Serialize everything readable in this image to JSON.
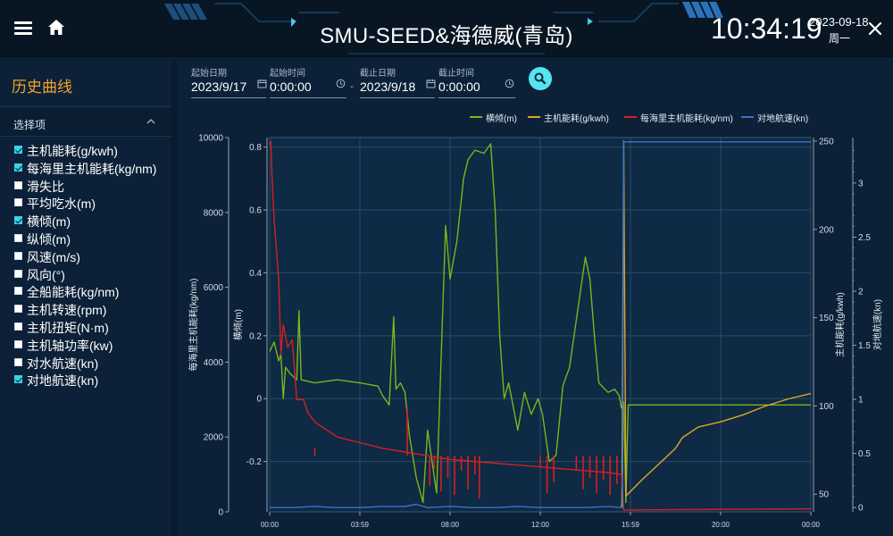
{
  "header": {
    "title": "SMU-SEED&海德威(青岛)",
    "time": "10:34:19",
    "date": "2023-09-18",
    "weekday": "周一",
    "icons": [
      "menu-icon",
      "home-icon",
      "close-icon"
    ]
  },
  "sidebar": {
    "title": "历史曲线",
    "section_label": "选择项",
    "options": [
      {
        "label": "主机能耗(g/kwh)",
        "checked": true
      },
      {
        "label": "每海里主机能耗(kg/nm)",
        "checked": true
      },
      {
        "label": "滑失比",
        "checked": false
      },
      {
        "label": "平均吃水(m)",
        "checked": false
      },
      {
        "label": "横倾(m)",
        "checked": true
      },
      {
        "label": "纵倾(m)",
        "checked": false
      },
      {
        "label": "风速(m/s)",
        "checked": false
      },
      {
        "label": "风向(°)",
        "checked": false
      },
      {
        "label": "全船能耗(kg/nm)",
        "checked": false
      },
      {
        "label": "主机转速(rpm)",
        "checked": false
      },
      {
        "label": "主机扭矩(N·m)",
        "checked": false
      },
      {
        "label": "主机轴功率(kw)",
        "checked": false
      },
      {
        "label": "对水航速(kn)",
        "checked": false
      },
      {
        "label": "对地航速(kn)",
        "checked": true
      }
    ]
  },
  "filters": {
    "start_date_label": "起始日期",
    "start_date": "2023/9/17",
    "start_time_label": "起始时间",
    "start_time": "0:00:00",
    "separator": "-",
    "end_date_label": "截止日期",
    "end_date": "2023/9/18",
    "end_time_label": "截止时间",
    "end_time": "0:00:00"
  },
  "colors": {
    "heel": "#7ab51d",
    "me_energy": "#e0a52a",
    "nm_energy": "#d42020",
    "sog": "#3c74c4",
    "accent": "#55e4f2",
    "sidebar_title": "#f4a12a"
  },
  "chart_data": {
    "type": "line",
    "legend": [
      {
        "name": "横倾(m)",
        "color": "#7ab51d"
      },
      {
        "name": "主机能耗(g/kwh)",
        "color": "#e0a52a"
      },
      {
        "name": "每海里主机能耗(kg/nm)",
        "color": "#d42020"
      },
      {
        "name": "对地航速(kn)",
        "color": "#3c74c4"
      }
    ],
    "x_ticks": [
      "00:00",
      "03:59",
      "08:00",
      "12:00",
      "15:59",
      "20:00",
      "00:00"
    ],
    "axes": {
      "nm_energy": {
        "label": "每海里主机能耗(kg/nm)",
        "ticks": [
          0,
          2000,
          4000,
          6000,
          8000,
          10000
        ],
        "range": [
          0,
          10000
        ]
      },
      "heel": {
        "label": "横倾(m)",
        "ticks": [
          -0.2,
          0,
          0.2,
          0.4,
          0.6,
          0.8
        ],
        "range": [
          -0.36,
          0.83
        ]
      },
      "me_energy": {
        "label": "主机能耗(g/kwh)",
        "ticks": [
          50,
          100,
          150,
          200,
          250
        ],
        "range": [
          40,
          252
        ]
      },
      "sog": {
        "label": "对地航速(kn)",
        "ticks": [
          0,
          0.5,
          1,
          1.5,
          2,
          2.5,
          3
        ],
        "range": [
          -0.04,
          3.42
        ]
      }
    },
    "x_range_hours": [
      0,
      24
    ],
    "series": [
      {
        "name": "横倾(m)",
        "axis": "heel",
        "points": [
          [
            0,
            0.15
          ],
          [
            0.2,
            0.18
          ],
          [
            0.4,
            0.12
          ],
          [
            0.5,
            0.14
          ],
          [
            0.6,
            0.0
          ],
          [
            0.7,
            0.1
          ],
          [
            0.9,
            0.08
          ],
          [
            1.2,
            0.06
          ],
          [
            1.3,
            0.28
          ],
          [
            1.4,
            0.06
          ],
          [
            2.0,
            0.05
          ],
          [
            3.0,
            0.06
          ],
          [
            4.0,
            0.05
          ],
          [
            4.8,
            0.04
          ],
          [
            5.0,
            0.01
          ],
          [
            5.3,
            -0.02
          ],
          [
            5.5,
            0.26
          ],
          [
            5.6,
            0.03
          ],
          [
            5.8,
            0.05
          ],
          [
            6.0,
            0.02
          ],
          [
            6.2,
            -0.12
          ],
          [
            6.5,
            -0.25
          ],
          [
            6.8,
            -0.33
          ],
          [
            7.0,
            -0.1
          ],
          [
            7.4,
            -0.3
          ],
          [
            7.8,
            0.55
          ],
          [
            8.0,
            0.38
          ],
          [
            8.3,
            0.5
          ],
          [
            8.6,
            0.7
          ],
          [
            8.8,
            0.76
          ],
          [
            9.1,
            0.79
          ],
          [
            9.5,
            0.78
          ],
          [
            9.8,
            0.81
          ],
          [
            10.0,
            0.6
          ],
          [
            10.2,
            0.2
          ],
          [
            10.4,
            0.0
          ],
          [
            10.6,
            0.05
          ],
          [
            11.0,
            -0.1
          ],
          [
            11.3,
            0.02
          ],
          [
            11.6,
            -0.05
          ],
          [
            11.9,
            0.0
          ],
          [
            12.1,
            -0.05
          ],
          [
            12.4,
            -0.2
          ],
          [
            12.7,
            -0.18
          ],
          [
            13.0,
            0.04
          ],
          [
            13.3,
            0.1
          ],
          [
            13.7,
            0.3
          ],
          [
            14.0,
            0.45
          ],
          [
            14.2,
            0.38
          ],
          [
            14.4,
            0.2
          ],
          [
            14.6,
            0.05
          ],
          [
            15.0,
            0.02
          ],
          [
            15.3,
            0.03
          ],
          [
            15.5,
            0.01
          ],
          [
            15.6,
            -0.03
          ],
          [
            15.7,
            -0.01
          ],
          [
            15.8,
            -0.33
          ],
          [
            15.9,
            -0.02
          ],
          [
            16.0,
            -0.02
          ],
          [
            24,
            -0.02
          ]
        ]
      },
      {
        "name": "主机能耗(g/kwh)",
        "axis": "me_energy",
        "points": [
          [
            15.6,
            43
          ],
          [
            15.62,
            45
          ],
          [
            15.7,
            250
          ],
          [
            15.8,
            49
          ],
          [
            16.5,
            58
          ],
          [
            17.5,
            70
          ],
          [
            18.0,
            76
          ],
          [
            18.3,
            82
          ],
          [
            19.0,
            88
          ],
          [
            20.0,
            91
          ],
          [
            21.0,
            95
          ],
          [
            22.0,
            100
          ],
          [
            22.5,
            102
          ],
          [
            23.0,
            104
          ],
          [
            24.0,
            107
          ]
        ]
      },
      {
        "name": "每海里主机能耗(kg/nm)",
        "axis": "nm_energy",
        "points": [
          [
            0,
            9800
          ],
          [
            0.05,
            9900
          ],
          [
            0.1,
            9000
          ],
          [
            0.2,
            7800
          ],
          [
            0.4,
            6200
          ],
          [
            0.5,
            4200
          ],
          [
            0.6,
            5000
          ],
          [
            0.8,
            4400
          ],
          [
            1.0,
            4600
          ],
          [
            1.2,
            3000
          ],
          [
            1.5,
            3000
          ],
          [
            1.7,
            2650
          ],
          [
            2.0,
            2400
          ],
          [
            2.5,
            2200
          ],
          [
            3.0,
            2000
          ],
          [
            4.0,
            1850
          ],
          [
            5.0,
            1700
          ],
          [
            6.0,
            1600
          ],
          [
            7.0,
            1500
          ],
          [
            8.0,
            1400
          ],
          [
            9.0,
            1350
          ],
          [
            10.0,
            1300
          ],
          [
            11.0,
            1250
          ],
          [
            12.0,
            1200
          ],
          [
            13.0,
            1150
          ],
          [
            14.0,
            1100
          ],
          [
            15.0,
            1050
          ],
          [
            15.6,
            1000
          ],
          [
            15.7,
            50
          ],
          [
            24,
            80
          ]
        ]
      },
      {
        "name": "对地航速(kn)",
        "axis": "sog",
        "points": [
          [
            0,
            0.0
          ],
          [
            1,
            0.0
          ],
          [
            2,
            0.01
          ],
          [
            3,
            0.0
          ],
          [
            4,
            0.0
          ],
          [
            5,
            0.01
          ],
          [
            6,
            0.01
          ],
          [
            6.5,
            0.03
          ],
          [
            7,
            0.0
          ],
          [
            8,
            0.01
          ],
          [
            9,
            0.0
          ],
          [
            10,
            0.0
          ],
          [
            11,
            0.01
          ],
          [
            12,
            0.0
          ],
          [
            13,
            0.0
          ],
          [
            14,
            0.0
          ],
          [
            15,
            0.01
          ],
          [
            15.65,
            0.0
          ],
          [
            15.7,
            3.38
          ],
          [
            24,
            3.38
          ]
        ]
      }
    ]
  }
}
